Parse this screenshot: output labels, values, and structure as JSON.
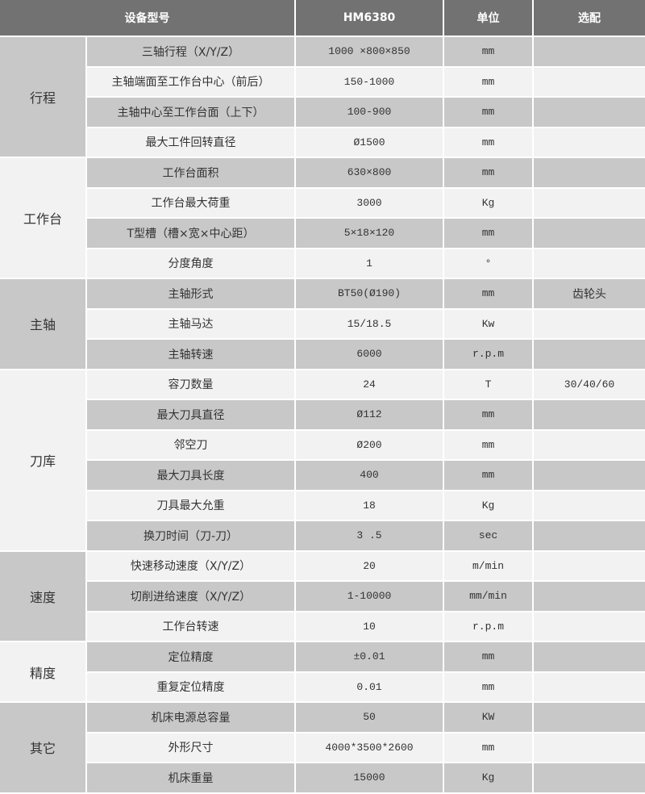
{
  "header": {
    "model_label": "设备型号",
    "model_value": "HM6380",
    "unit_label": "单位",
    "option_label": "选配"
  },
  "groups": [
    {
      "name": "行程",
      "rows": [
        {
          "param": "三轴行程（X/Y/Z）",
          "value": "1000 ×800×850",
          "unit": "mm",
          "option": ""
        },
        {
          "param": "主轴端面至工作台中心（前后）",
          "value": "150-1000",
          "unit": "mm",
          "option": ""
        },
        {
          "param": "主轴中心至工作台面（上下）",
          "value": "100-900",
          "unit": "mm",
          "option": ""
        },
        {
          "param": "最大工件回转直径",
          "value": "Ø1500",
          "unit": "mm",
          "option": ""
        }
      ]
    },
    {
      "name": "工作台",
      "rows": [
        {
          "param": "工作台面积",
          "value": "630×800",
          "unit": "mm",
          "option": ""
        },
        {
          "param": "工作台最大荷重",
          "value": "3000",
          "unit": "Kg",
          "option": ""
        },
        {
          "param": "T型槽（槽×宽×中心距）",
          "value": "5×18×120",
          "unit": "mm",
          "option": ""
        },
        {
          "param": "分度角度",
          "value": "1",
          "unit": "°",
          "option": ""
        }
      ]
    },
    {
      "name": "主轴",
      "rows": [
        {
          "param": "主轴形式",
          "value": "BT50(Ø190)",
          "unit": "mm",
          "option": "齿轮头"
        },
        {
          "param": "主轴马达",
          "value": "15/18.5",
          "unit": "Kw",
          "option": ""
        },
        {
          "param": "主轴转速",
          "value": "6000",
          "unit": "r.p.m",
          "option": ""
        }
      ]
    },
    {
      "name": "刀库",
      "rows": [
        {
          "param": "容刀数量",
          "value": "24",
          "unit": "T",
          "option": "30/40/60"
        },
        {
          "param": "最大刀具直径",
          "value": "Ø112",
          "unit": "mm",
          "option": ""
        },
        {
          "param": "邻空刀",
          "value": "Ø200",
          "unit": "mm",
          "option": ""
        },
        {
          "param": "最大刀具长度",
          "value": "400",
          "unit": "mm",
          "option": ""
        },
        {
          "param": "刀具最大允重",
          "value": "18",
          "unit": "Kg",
          "option": ""
        },
        {
          "param": "换刀时间（刀-刀）",
          "value": "3 .5",
          "unit": "sec",
          "option": ""
        }
      ]
    },
    {
      "name": "速度",
      "rows": [
        {
          "param": "快速移动速度（X/Y/Z）",
          "value": "20",
          "unit": "m/min",
          "option": ""
        },
        {
          "param": "切削进给速度（X/Y/Z）",
          "value": "1-10000",
          "unit": "mm/min",
          "option": ""
        },
        {
          "param": "工作台转速",
          "value": "10",
          "unit": "r.p.m",
          "option": ""
        }
      ]
    },
    {
      "name": "精度",
      "rows": [
        {
          "param": "定位精度",
          "value": "±0.01",
          "unit": "mm",
          "option": ""
        },
        {
          "param": "重复定位精度",
          "value": "0.01",
          "unit": "mm",
          "option": ""
        }
      ]
    },
    {
      "name": "其它",
      "rows": [
        {
          "param": "机床电源总容量",
          "value": "50",
          "unit": "KW",
          "option": ""
        },
        {
          "param": "外形尺寸",
          "value": "4000*3500*2600",
          "unit": "mm",
          "option": ""
        },
        {
          "param": "机床重量",
          "value": "15000",
          "unit": "Kg",
          "option": ""
        }
      ]
    }
  ]
}
